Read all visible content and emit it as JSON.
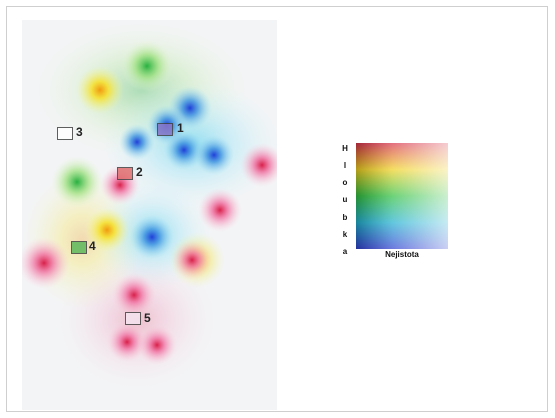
{
  "markers": [
    {
      "number": "1",
      "fill": "#8a78c8",
      "stroke": "#444444"
    },
    {
      "number": "2",
      "fill": "#e07070",
      "stroke": "#444444"
    },
    {
      "number": "3",
      "fill": "#ffffff",
      "stroke": "#444444"
    },
    {
      "number": "4",
      "fill": "#5cb85c",
      "stroke": "#444444"
    },
    {
      "number": "5",
      "fill": "#f4e4ee",
      "stroke": "#444444"
    }
  ],
  "legend": {
    "vertical_label_letters": [
      "H",
      "l",
      "o",
      "u",
      "b",
      "k",
      "a"
    ],
    "horizontal_label": "Nejistota",
    "colors": {
      "top": [
        "#6a1535",
        "#d7324a",
        "#f5a2ae"
      ],
      "mid_upper": [
        "#b06010",
        "#f0d020",
        "#fff0a0"
      ],
      "mid": [
        "#007a30",
        "#30c040",
        "#b8f0b0"
      ],
      "mid_lower": [
        "#006080",
        "#20b0d0",
        "#b0e8f8"
      ],
      "bottom": [
        "#1a1a5e",
        "#3040d0",
        "#b0b8f8"
      ]
    }
  }
}
